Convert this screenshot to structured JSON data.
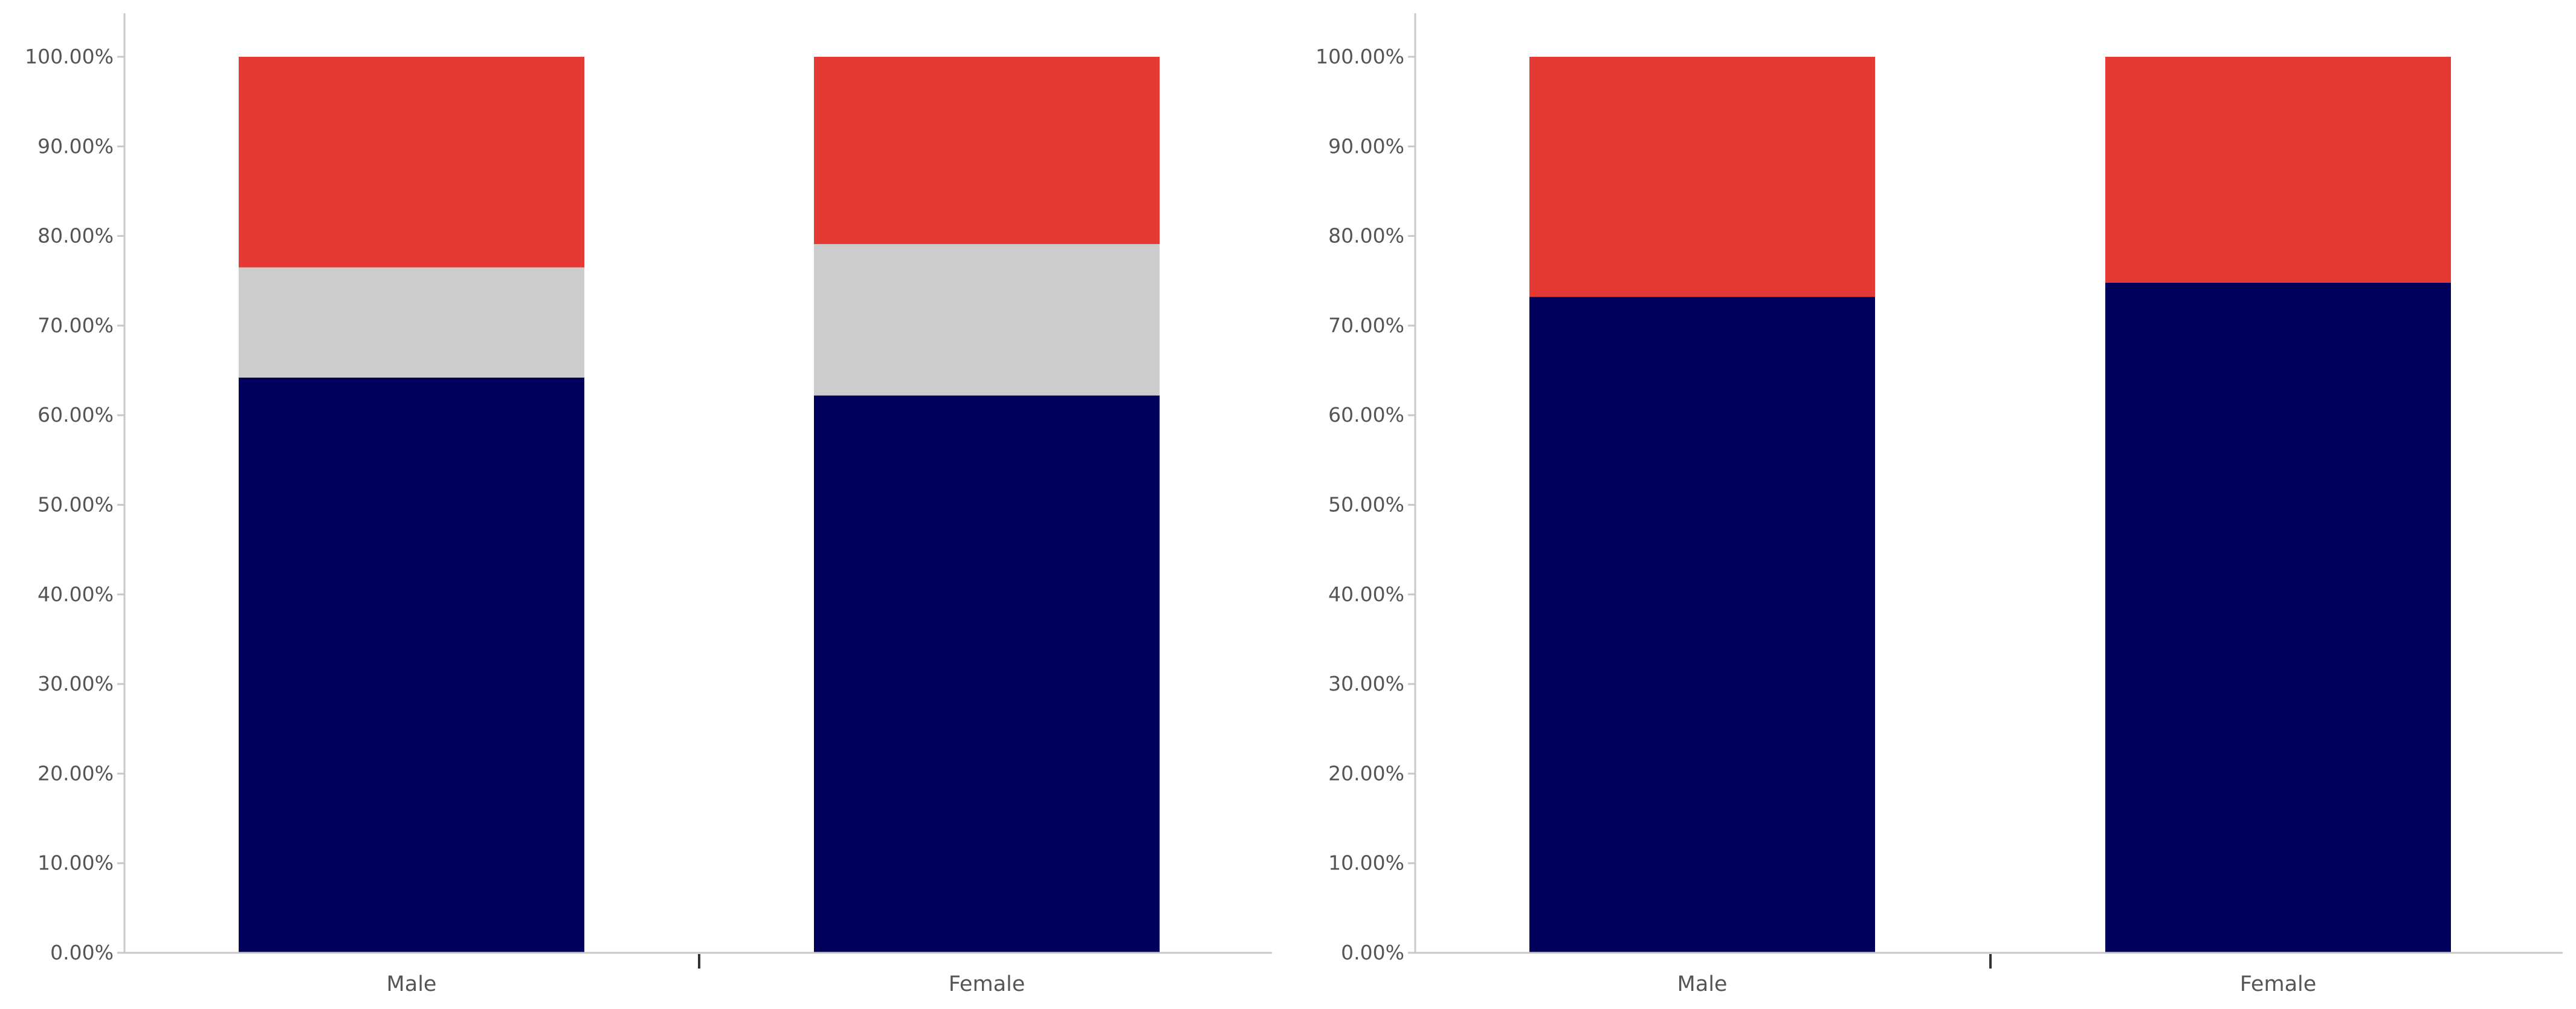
{
  "chart_data": [
    {
      "type": "bar",
      "stacked": true,
      "categories": [
        "Male",
        "Female"
      ],
      "series": [
        {
          "color": "#00005a",
          "values": [
            64.2,
            62.2
          ]
        },
        {
          "color": "#cccccc",
          "values": [
            12.3,
            16.9
          ]
        },
        {
          "color": "#e53935",
          "values": [
            23.5,
            20.9
          ]
        }
      ],
      "ylim": [
        0,
        100
      ],
      "yticks": [
        "0.00%",
        "10.00%",
        "20.00%",
        "30.00%",
        "40.00%",
        "50.00%",
        "60.00%",
        "70.00%",
        "80.00%",
        "90.00%",
        "100.00%"
      ],
      "title": "",
      "xlabel": "",
      "ylabel": "",
      "grid": false,
      "legend": "none"
    },
    {
      "type": "bar",
      "stacked": true,
      "categories": [
        "Male",
        "Female"
      ],
      "series": [
        {
          "color": "#00005a",
          "values": [
            73.2,
            74.8
          ]
        },
        {
          "color": "#e53935",
          "values": [
            26.8,
            25.2
          ]
        }
      ],
      "ylim": [
        0,
        100
      ],
      "yticks": [
        "0.00%",
        "10.00%",
        "20.00%",
        "30.00%",
        "40.00%",
        "50.00%",
        "60.00%",
        "70.00%",
        "80.00%",
        "90.00%",
        "100.00%"
      ],
      "title": "",
      "xlabel": "",
      "ylabel": "",
      "grid": false,
      "legend": "none"
    }
  ]
}
